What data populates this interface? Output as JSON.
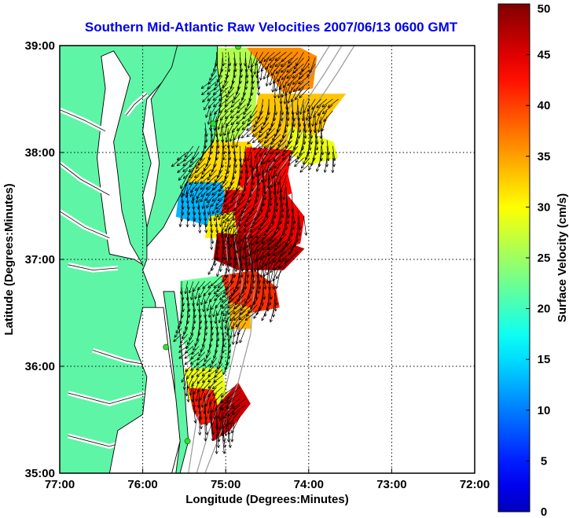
{
  "title": "Southern Mid-Atlantic Raw Velocities 2007/06/13 0600 GMT",
  "x_axis": {
    "label": "Longitude (Degrees:Minutes)",
    "ticks": [
      "77:00",
      "76:00",
      "75:00",
      "74:00",
      "73:00",
      "72:00"
    ]
  },
  "y_axis": {
    "label": "Latitude (Degrees:Minutes)",
    "ticks": [
      "39:00",
      "38:00",
      "37:00",
      "36:00",
      "35:00"
    ]
  },
  "colorbar": {
    "label": "Surface Velocity (cm/s)",
    "ticks": [
      "50",
      "45",
      "40",
      "35",
      "30",
      "25",
      "20",
      "15",
      "10",
      "5",
      "0"
    ],
    "range": [
      0,
      50
    ]
  },
  "colors": {
    "land": "#5ef5a6",
    "water": "#ffffff",
    "coast": "#000000",
    "bathymetry": "#999999",
    "station": "#33dd33"
  },
  "stations": [
    {
      "lon": -74.85,
      "lat": 38.99
    },
    {
      "lon": -75.15,
      "lat": 38.27
    },
    {
      "lon": -75.72,
      "lat": 36.18
    },
    {
      "lon": -75.46,
      "lat": 35.3
    }
  ],
  "velocity_regions": [
    {
      "speed": 26,
      "poly": [
        [
          -75.15,
          38.98
        ],
        [
          -74.75,
          38.98
        ],
        [
          -74.6,
          38.85
        ],
        [
          -74.65,
          38.3
        ],
        [
          -75.05,
          38.0
        ],
        [
          -75.3,
          38.1
        ],
        [
          -75.2,
          38.5
        ]
      ]
    },
    {
      "speed": 36,
      "poly": [
        [
          -74.75,
          38.98
        ],
        [
          -74.1,
          38.98
        ],
        [
          -73.9,
          38.9
        ],
        [
          -73.95,
          38.6
        ],
        [
          -74.3,
          38.55
        ],
        [
          -74.6,
          38.85
        ]
      ]
    },
    {
      "speed": 33,
      "poly": [
        [
          -74.6,
          38.55
        ],
        [
          -73.55,
          38.55
        ],
        [
          -73.75,
          38.35
        ],
        [
          -73.85,
          38.2
        ],
        [
          -74.1,
          38.05
        ],
        [
          -74.5,
          38.0
        ],
        [
          -74.7,
          38.2
        ]
      ]
    },
    {
      "speed": 29,
      "poly": [
        [
          -74.25,
          38.25
        ],
        [
          -73.7,
          38.1
        ],
        [
          -73.65,
          37.95
        ],
        [
          -74.0,
          37.88
        ],
        [
          -74.25,
          38.0
        ]
      ]
    },
    {
      "speed": 32,
      "poly": [
        [
          -75.4,
          38.1
        ],
        [
          -74.7,
          38.1
        ],
        [
          -74.55,
          37.7
        ],
        [
          -74.9,
          37.55
        ],
        [
          -75.45,
          37.7
        ],
        [
          -75.55,
          37.95
        ]
      ]
    },
    {
      "speed": 43,
      "poly": [
        [
          -74.75,
          38.05
        ],
        [
          -74.2,
          38.02
        ],
        [
          -74.25,
          37.8
        ],
        [
          -74.2,
          37.62
        ],
        [
          -74.55,
          37.5
        ],
        [
          -74.85,
          37.7
        ]
      ]
    },
    {
      "speed": 13,
      "poly": [
        [
          -75.55,
          37.72
        ],
        [
          -75.05,
          37.72
        ],
        [
          -74.95,
          37.45
        ],
        [
          -75.15,
          37.3
        ],
        [
          -75.6,
          37.4
        ]
      ]
    },
    {
      "speed": 44,
      "poly": [
        [
          -75.0,
          37.65
        ],
        [
          -74.3,
          37.65
        ],
        [
          -74.05,
          37.4
        ],
        [
          -74.1,
          37.15
        ],
        [
          -74.4,
          37.05
        ],
        [
          -74.85,
          37.2
        ],
        [
          -75.05,
          37.45
        ]
      ]
    },
    {
      "speed": 31,
      "poly": [
        [
          -75.2,
          37.4
        ],
        [
          -74.9,
          37.45
        ],
        [
          -74.85,
          37.2
        ],
        [
          -75.25,
          37.2
        ]
      ]
    },
    {
      "speed": 47,
      "poly": [
        [
          -75.1,
          37.25
        ],
        [
          -74.4,
          37.2
        ],
        [
          -74.05,
          37.1
        ],
        [
          -74.3,
          36.9
        ],
        [
          -74.85,
          36.9
        ],
        [
          -75.15,
          37.0
        ]
      ]
    },
    {
      "speed": 22,
      "poly": [
        [
          -75.55,
          36.8
        ],
        [
          -75.05,
          36.85
        ],
        [
          -74.9,
          36.55
        ],
        [
          -74.95,
          36.0
        ],
        [
          -75.1,
          35.85
        ],
        [
          -75.4,
          35.95
        ],
        [
          -75.55,
          36.35
        ]
      ]
    },
    {
      "speed": 41,
      "poly": [
        [
          -75.05,
          36.85
        ],
        [
          -74.65,
          36.9
        ],
        [
          -74.4,
          36.75
        ],
        [
          -74.35,
          36.55
        ],
        [
          -74.7,
          36.5
        ],
        [
          -74.95,
          36.55
        ]
      ]
    },
    {
      "speed": 34,
      "poly": [
        [
          -74.95,
          36.6
        ],
        [
          -74.7,
          36.55
        ],
        [
          -74.7,
          36.35
        ],
        [
          -74.95,
          36.35
        ]
      ]
    },
    {
      "speed": 29,
      "poly": [
        [
          -75.5,
          35.98
        ],
        [
          -75.05,
          35.98
        ],
        [
          -74.95,
          35.65
        ],
        [
          -75.2,
          35.55
        ],
        [
          -75.45,
          35.7
        ]
      ]
    },
    {
      "speed": 42,
      "poly": [
        [
          -75.45,
          35.8
        ],
        [
          -75.15,
          35.78
        ],
        [
          -75.05,
          35.5
        ],
        [
          -75.3,
          35.45
        ],
        [
          -75.4,
          35.6
        ]
      ]
    },
    {
      "speed": 46,
      "poly": [
        [
          -75.2,
          35.55
        ],
        [
          -74.85,
          35.85
        ],
        [
          -74.7,
          35.65
        ],
        [
          -74.95,
          35.4
        ],
        [
          -75.15,
          35.3
        ]
      ]
    }
  ],
  "wind_field": {
    "dir_deg": 205,
    "arrow_len": 0.13
  }
}
